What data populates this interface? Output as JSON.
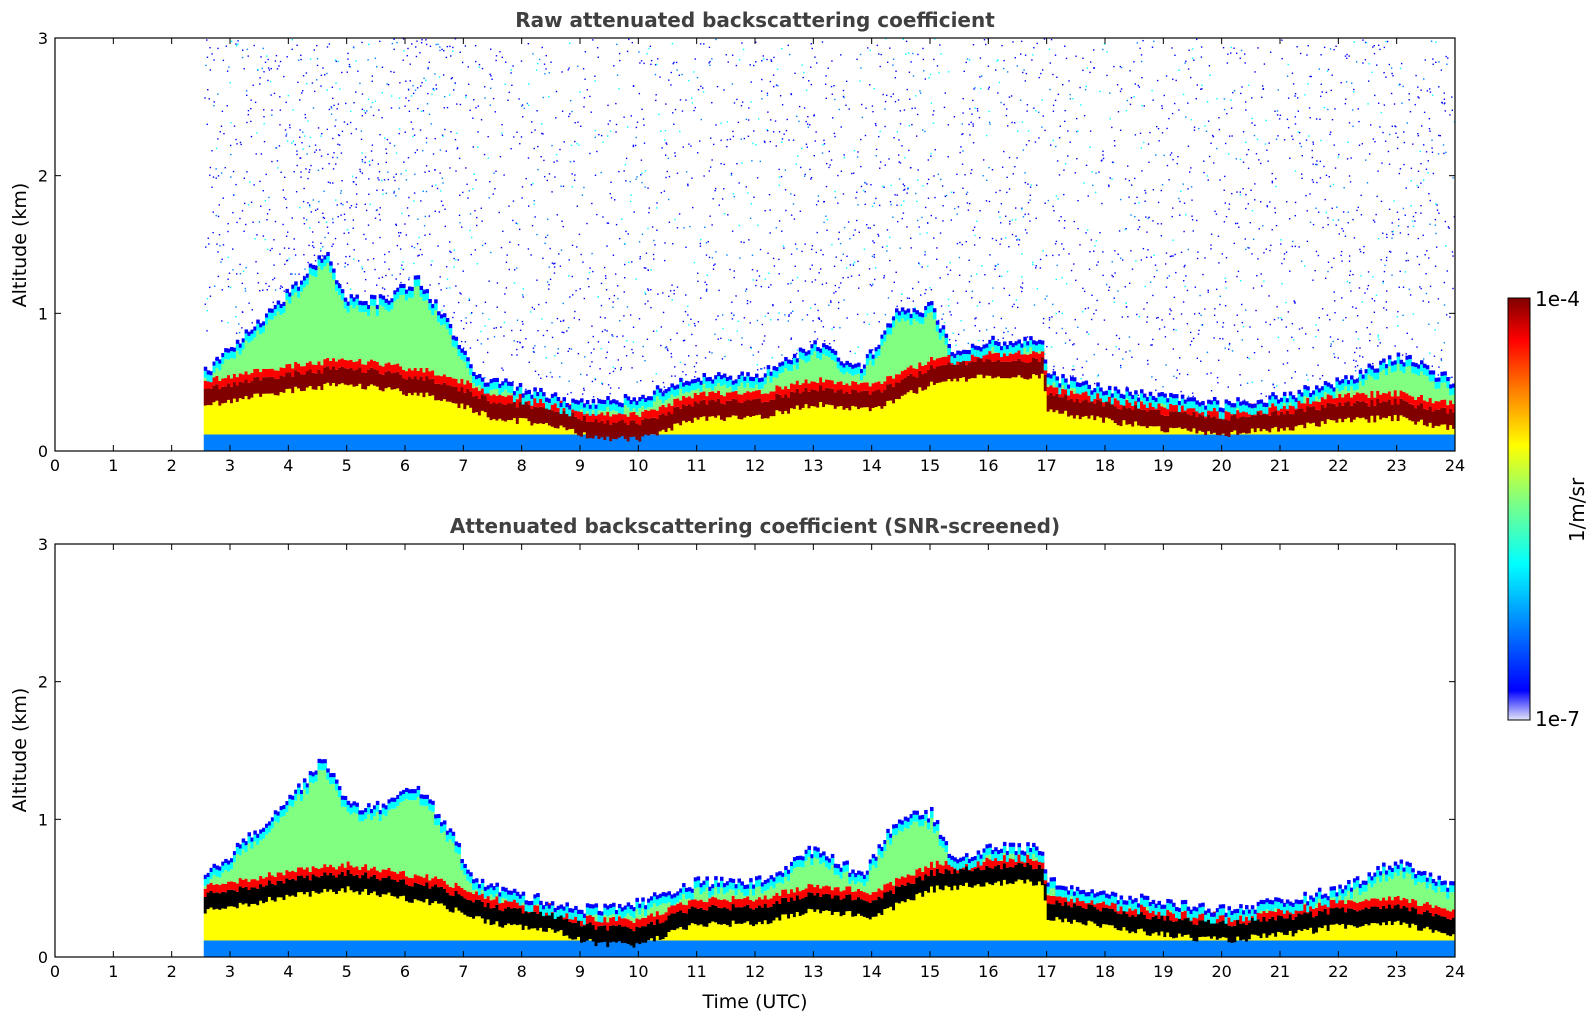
{
  "chart_data": [
    {
      "type": "heatmap",
      "title": "Raw attenuated backscattering coefficient",
      "xlabel": "",
      "ylabel": "Altitude (km)",
      "xlim": [
        0,
        24
      ],
      "ylim": [
        0,
        3
      ],
      "x_ticks": [
        "0",
        "1",
        "2",
        "3",
        "4",
        "5",
        "6",
        "7",
        "8",
        "9",
        "10",
        "11",
        "12",
        "13",
        "14",
        "15",
        "16",
        "17",
        "18",
        "19",
        "20",
        "21",
        "22",
        "23",
        "24"
      ],
      "y_ticks": [
        "0",
        "1",
        "2",
        "3"
      ],
      "data_start_hour": 2.55,
      "layer_top_km": [
        {
          "t": 2.6,
          "km": 0.6
        },
        {
          "t": 3.5,
          "km": 0.95
        },
        {
          "t": 4.2,
          "km": 1.25
        },
        {
          "t": 4.6,
          "km": 1.45
        },
        {
          "t": 5.0,
          "km": 1.1
        },
        {
          "t": 5.6,
          "km": 1.1
        },
        {
          "t": 6.2,
          "km": 1.25
        },
        {
          "t": 6.7,
          "km": 0.95
        },
        {
          "t": 7.2,
          "km": 0.55
        },
        {
          "t": 8.0,
          "km": 0.45
        },
        {
          "t": 9.0,
          "km": 0.35
        },
        {
          "t": 10.0,
          "km": 0.4
        },
        {
          "t": 11.0,
          "km": 0.55
        },
        {
          "t": 12.0,
          "km": 0.55
        },
        {
          "t": 12.5,
          "km": 0.65
        },
        {
          "t": 13.0,
          "km": 0.8
        },
        {
          "t": 13.8,
          "km": 0.6
        },
        {
          "t": 14.4,
          "km": 1.0
        },
        {
          "t": 15.0,
          "km": 1.05
        },
        {
          "t": 15.4,
          "km": 0.7
        },
        {
          "t": 16.0,
          "km": 0.8
        },
        {
          "t": 16.9,
          "km": 0.8
        },
        {
          "t": 17.0,
          "km": 0.55
        },
        {
          "t": 18.0,
          "km": 0.45
        },
        {
          "t": 19.0,
          "km": 0.4
        },
        {
          "t": 20.0,
          "km": 0.35
        },
        {
          "t": 21.0,
          "km": 0.4
        },
        {
          "t": 22.0,
          "km": 0.5
        },
        {
          "t": 23.0,
          "km": 0.7
        },
        {
          "t": 24.0,
          "km": 0.5
        }
      ],
      "high_backscatter_layer_km": [
        {
          "t": 2.6,
          "km": 0.4
        },
        {
          "t": 4.0,
          "km": 0.5
        },
        {
          "t": 5.0,
          "km": 0.55
        },
        {
          "t": 6.5,
          "km": 0.45
        },
        {
          "t": 7.5,
          "km": 0.3
        },
        {
          "t": 8.5,
          "km": 0.25
        },
        {
          "t": 9.3,
          "km": 0.15
        },
        {
          "t": 10.0,
          "km": 0.15
        },
        {
          "t": 11.0,
          "km": 0.3
        },
        {
          "t": 12.0,
          "km": 0.3
        },
        {
          "t": 13.0,
          "km": 0.4
        },
        {
          "t": 14.0,
          "km": 0.35
        },
        {
          "t": 15.0,
          "km": 0.55
        },
        {
          "t": 16.0,
          "km": 0.6
        },
        {
          "t": 16.9,
          "km": 0.6
        },
        {
          "t": 17.0,
          "km": 0.35
        },
        {
          "t": 18.0,
          "km": 0.28
        },
        {
          "t": 19.0,
          "km": 0.22
        },
        {
          "t": 20.0,
          "km": 0.18
        },
        {
          "t": 21.0,
          "km": 0.22
        },
        {
          "t": 22.0,
          "km": 0.28
        },
        {
          "t": 23.0,
          "km": 0.3
        },
        {
          "t": 24.0,
          "km": 0.22
        }
      ],
      "noise_present_above_layer": true
    },
    {
      "type": "heatmap",
      "title": "Attenuated backscattering coefficient (SNR-screened)",
      "xlabel": "Time (UTC)",
      "ylabel": "Altitude (km)",
      "xlim": [
        0,
        24
      ],
      "ylim": [
        0,
        3
      ],
      "x_ticks": [
        "0",
        "1",
        "2",
        "3",
        "4",
        "5",
        "6",
        "7",
        "8",
        "9",
        "10",
        "11",
        "12",
        "13",
        "14",
        "15",
        "16",
        "17",
        "18",
        "19",
        "20",
        "21",
        "22",
        "23",
        "24"
      ],
      "y_ticks": [
        "0",
        "1",
        "2",
        "3"
      ],
      "data_start_hour": 2.55,
      "noise_present_above_layer": false,
      "saturated_color": "#000000"
    }
  ],
  "colorbar": {
    "label": "1/m/sr",
    "max_label": "1e-4",
    "min_label": "1e-7",
    "scale": "log",
    "colors": [
      "#e6e6fa",
      "#0000ff",
      "#0080ff",
      "#00ffff",
      "#80ff80",
      "#ffff00",
      "#ff8000",
      "#ff0000",
      "#800000"
    ]
  }
}
